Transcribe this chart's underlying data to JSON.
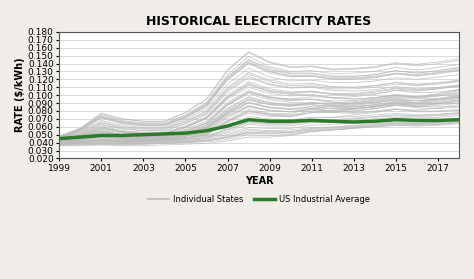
{
  "title": "HISTORICAL ELECTRICITY RATES",
  "xlabel": "YEAR",
  "ylabel": "RATE ($/kWh)",
  "ylim": [
    0.02,
    0.18
  ],
  "xlim": [
    1999,
    2018
  ],
  "yticks": [
    0.02,
    0.03,
    0.04,
    0.05,
    0.06,
    0.07,
    0.08,
    0.09,
    0.1,
    0.11,
    0.12,
    0.13,
    0.14,
    0.15,
    0.16,
    0.17,
    0.18
  ],
  "xticks": [
    1999,
    2001,
    2003,
    2005,
    2007,
    2009,
    2011,
    2013,
    2015,
    2017
  ],
  "years": [
    1999,
    2000,
    2001,
    2002,
    2003,
    2004,
    2005,
    2006,
    2007,
    2008,
    2009,
    2010,
    2011,
    2012,
    2013,
    2014,
    2015,
    2016,
    2017,
    2018
  ],
  "us_avg": [
    0.045,
    0.047,
    0.049,
    0.049,
    0.05,
    0.051,
    0.052,
    0.055,
    0.061,
    0.069,
    0.067,
    0.067,
    0.068,
    0.067,
    0.066,
    0.067,
    0.069,
    0.068,
    0.068,
    0.069
  ],
  "state_lines": [
    [
      0.038,
      0.039,
      0.04,
      0.04,
      0.04,
      0.041,
      0.042,
      0.043,
      0.047,
      0.053,
      0.052,
      0.053,
      0.056,
      0.057,
      0.059,
      0.061,
      0.063,
      0.062,
      0.063,
      0.065
    ],
    [
      0.039,
      0.04,
      0.041,
      0.04,
      0.041,
      0.042,
      0.043,
      0.045,
      0.05,
      0.057,
      0.055,
      0.056,
      0.059,
      0.06,
      0.062,
      0.064,
      0.066,
      0.065,
      0.066,
      0.068
    ],
    [
      0.04,
      0.041,
      0.042,
      0.041,
      0.042,
      0.043,
      0.044,
      0.046,
      0.052,
      0.059,
      0.058,
      0.058,
      0.062,
      0.063,
      0.065,
      0.067,
      0.069,
      0.068,
      0.069,
      0.071
    ],
    [
      0.037,
      0.038,
      0.039,
      0.038,
      0.039,
      0.04,
      0.041,
      0.043,
      0.048,
      0.055,
      0.054,
      0.054,
      0.058,
      0.059,
      0.061,
      0.063,
      0.065,
      0.064,
      0.065,
      0.067
    ],
    [
      0.036,
      0.037,
      0.038,
      0.037,
      0.038,
      0.039,
      0.04,
      0.042,
      0.046,
      0.052,
      0.051,
      0.051,
      0.055,
      0.056,
      0.058,
      0.06,
      0.062,
      0.061,
      0.062,
      0.064
    ],
    [
      0.038,
      0.039,
      0.039,
      0.039,
      0.039,
      0.04,
      0.041,
      0.043,
      0.047,
      0.053,
      0.052,
      0.053,
      0.057,
      0.058,
      0.06,
      0.062,
      0.064,
      0.063,
      0.064,
      0.066
    ],
    [
      0.04,
      0.042,
      0.045,
      0.043,
      0.043,
      0.044,
      0.046,
      0.049,
      0.057,
      0.066,
      0.064,
      0.064,
      0.068,
      0.069,
      0.071,
      0.073,
      0.075,
      0.074,
      0.075,
      0.077
    ],
    [
      0.037,
      0.038,
      0.038,
      0.038,
      0.038,
      0.039,
      0.04,
      0.041,
      0.044,
      0.05,
      0.049,
      0.05,
      0.054,
      0.056,
      0.058,
      0.06,
      0.062,
      0.062,
      0.063,
      0.066
    ],
    [
      0.036,
      0.036,
      0.037,
      0.036,
      0.036,
      0.037,
      0.038,
      0.039,
      0.042,
      0.047,
      0.047,
      0.049,
      0.054,
      0.056,
      0.059,
      0.062,
      0.065,
      0.064,
      0.066,
      0.069
    ],
    [
      0.04,
      0.044,
      0.051,
      0.046,
      0.044,
      0.044,
      0.05,
      0.057,
      0.075,
      0.087,
      0.081,
      0.079,
      0.08,
      0.078,
      0.077,
      0.079,
      0.082,
      0.079,
      0.079,
      0.081
    ],
    [
      0.038,
      0.04,
      0.042,
      0.041,
      0.041,
      0.042,
      0.044,
      0.047,
      0.054,
      0.063,
      0.061,
      0.061,
      0.065,
      0.066,
      0.068,
      0.07,
      0.072,
      0.071,
      0.072,
      0.074
    ],
    [
      0.039,
      0.041,
      0.043,
      0.042,
      0.042,
      0.043,
      0.045,
      0.048,
      0.056,
      0.065,
      0.063,
      0.063,
      0.067,
      0.068,
      0.07,
      0.072,
      0.074,
      0.073,
      0.074,
      0.076
    ],
    [
      0.04,
      0.043,
      0.047,
      0.044,
      0.044,
      0.045,
      0.048,
      0.052,
      0.062,
      0.073,
      0.07,
      0.069,
      0.072,
      0.072,
      0.073,
      0.075,
      0.077,
      0.075,
      0.076,
      0.078
    ],
    [
      0.04,
      0.044,
      0.05,
      0.046,
      0.044,
      0.044,
      0.05,
      0.058,
      0.078,
      0.091,
      0.084,
      0.082,
      0.083,
      0.08,
      0.078,
      0.08,
      0.083,
      0.08,
      0.08,
      0.082
    ],
    [
      0.042,
      0.047,
      0.055,
      0.05,
      0.048,
      0.048,
      0.055,
      0.064,
      0.087,
      0.102,
      0.094,
      0.091,
      0.091,
      0.087,
      0.085,
      0.087,
      0.09,
      0.086,
      0.085,
      0.086
    ],
    [
      0.041,
      0.046,
      0.053,
      0.048,
      0.046,
      0.046,
      0.053,
      0.062,
      0.083,
      0.097,
      0.09,
      0.088,
      0.088,
      0.085,
      0.083,
      0.085,
      0.088,
      0.084,
      0.083,
      0.085
    ],
    [
      0.043,
      0.048,
      0.057,
      0.052,
      0.05,
      0.05,
      0.057,
      0.067,
      0.091,
      0.106,
      0.098,
      0.095,
      0.095,
      0.091,
      0.089,
      0.091,
      0.094,
      0.09,
      0.089,
      0.09
    ],
    [
      0.042,
      0.047,
      0.055,
      0.05,
      0.048,
      0.048,
      0.055,
      0.065,
      0.089,
      0.104,
      0.097,
      0.094,
      0.095,
      0.091,
      0.09,
      0.092,
      0.096,
      0.093,
      0.094,
      0.096
    ],
    [
      0.044,
      0.049,
      0.059,
      0.054,
      0.052,
      0.052,
      0.06,
      0.071,
      0.097,
      0.113,
      0.104,
      0.101,
      0.101,
      0.097,
      0.095,
      0.097,
      0.1,
      0.096,
      0.095,
      0.097
    ],
    [
      0.043,
      0.048,
      0.058,
      0.053,
      0.051,
      0.051,
      0.059,
      0.07,
      0.095,
      0.11,
      0.102,
      0.099,
      0.1,
      0.096,
      0.095,
      0.097,
      0.101,
      0.098,
      0.099,
      0.101
    ],
    [
      0.044,
      0.05,
      0.061,
      0.055,
      0.053,
      0.053,
      0.061,
      0.073,
      0.1,
      0.117,
      0.108,
      0.104,
      0.105,
      0.101,
      0.1,
      0.102,
      0.106,
      0.103,
      0.104,
      0.107
    ],
    [
      0.045,
      0.051,
      0.063,
      0.058,
      0.055,
      0.055,
      0.064,
      0.076,
      0.104,
      0.122,
      0.113,
      0.109,
      0.11,
      0.106,
      0.105,
      0.107,
      0.111,
      0.108,
      0.11,
      0.113
    ],
    [
      0.046,
      0.053,
      0.066,
      0.06,
      0.058,
      0.058,
      0.067,
      0.08,
      0.11,
      0.129,
      0.119,
      0.114,
      0.115,
      0.111,
      0.11,
      0.112,
      0.116,
      0.113,
      0.115,
      0.118
    ],
    [
      0.043,
      0.049,
      0.06,
      0.054,
      0.052,
      0.052,
      0.06,
      0.072,
      0.098,
      0.115,
      0.106,
      0.103,
      0.105,
      0.102,
      0.102,
      0.105,
      0.109,
      0.107,
      0.109,
      0.112
    ],
    [
      0.042,
      0.048,
      0.058,
      0.053,
      0.051,
      0.051,
      0.059,
      0.071,
      0.097,
      0.113,
      0.105,
      0.102,
      0.104,
      0.101,
      0.101,
      0.104,
      0.108,
      0.106,
      0.108,
      0.111
    ],
    [
      0.044,
      0.051,
      0.063,
      0.057,
      0.055,
      0.055,
      0.064,
      0.077,
      0.106,
      0.124,
      0.114,
      0.11,
      0.111,
      0.108,
      0.108,
      0.11,
      0.114,
      0.112,
      0.114,
      0.117
    ],
    [
      0.045,
      0.052,
      0.065,
      0.059,
      0.057,
      0.057,
      0.066,
      0.079,
      0.108,
      0.127,
      0.117,
      0.112,
      0.113,
      0.11,
      0.11,
      0.112,
      0.116,
      0.114,
      0.116,
      0.119
    ],
    [
      0.046,
      0.054,
      0.068,
      0.062,
      0.059,
      0.059,
      0.069,
      0.083,
      0.114,
      0.134,
      0.123,
      0.118,
      0.119,
      0.116,
      0.116,
      0.118,
      0.122,
      0.12,
      0.123,
      0.126
    ],
    [
      0.047,
      0.056,
      0.072,
      0.065,
      0.062,
      0.062,
      0.072,
      0.087,
      0.12,
      0.141,
      0.13,
      0.124,
      0.124,
      0.121,
      0.121,
      0.123,
      0.127,
      0.125,
      0.128,
      0.132
    ],
    [
      0.048,
      0.057,
      0.074,
      0.067,
      0.064,
      0.064,
      0.074,
      0.089,
      0.123,
      0.145,
      0.134,
      0.128,
      0.128,
      0.124,
      0.124,
      0.126,
      0.131,
      0.128,
      0.131,
      0.135
    ],
    [
      0.046,
      0.055,
      0.071,
      0.064,
      0.061,
      0.061,
      0.071,
      0.086,
      0.119,
      0.14,
      0.128,
      0.123,
      0.124,
      0.12,
      0.12,
      0.122,
      0.127,
      0.124,
      0.127,
      0.131
    ],
    [
      0.046,
      0.055,
      0.072,
      0.065,
      0.062,
      0.062,
      0.072,
      0.087,
      0.121,
      0.142,
      0.13,
      0.125,
      0.125,
      0.122,
      0.122,
      0.124,
      0.128,
      0.126,
      0.129,
      0.133
    ],
    [
      0.047,
      0.056,
      0.073,
      0.066,
      0.063,
      0.063,
      0.073,
      0.089,
      0.123,
      0.144,
      0.132,
      0.127,
      0.127,
      0.124,
      0.124,
      0.126,
      0.131,
      0.128,
      0.131,
      0.135
    ],
    [
      0.047,
      0.057,
      0.075,
      0.068,
      0.065,
      0.065,
      0.075,
      0.091,
      0.126,
      0.149,
      0.136,
      0.13,
      0.131,
      0.127,
      0.128,
      0.13,
      0.135,
      0.132,
      0.135,
      0.139
    ],
    [
      0.048,
      0.058,
      0.077,
      0.07,
      0.067,
      0.067,
      0.078,
      0.095,
      0.131,
      0.154,
      0.141,
      0.135,
      0.136,
      0.132,
      0.133,
      0.135,
      0.14,
      0.137,
      0.14,
      0.144
    ],
    [
      0.048,
      0.058,
      0.077,
      0.07,
      0.067,
      0.067,
      0.078,
      0.095,
      0.132,
      0.155,
      0.142,
      0.136,
      0.137,
      0.133,
      0.134,
      0.136,
      0.141,
      0.139,
      0.142,
      0.146
    ],
    [
      0.038,
      0.041,
      0.043,
      0.042,
      0.042,
      0.043,
      0.046,
      0.05,
      0.067,
      0.08,
      0.075,
      0.073,
      0.078,
      0.079,
      0.082,
      0.085,
      0.089,
      0.088,
      0.09,
      0.094
    ],
    [
      0.039,
      0.041,
      0.044,
      0.043,
      0.042,
      0.043,
      0.046,
      0.05,
      0.065,
      0.077,
      0.073,
      0.073,
      0.078,
      0.08,
      0.083,
      0.086,
      0.09,
      0.089,
      0.092,
      0.096
    ],
    [
      0.04,
      0.043,
      0.046,
      0.044,
      0.043,
      0.044,
      0.048,
      0.053,
      0.069,
      0.082,
      0.077,
      0.077,
      0.083,
      0.086,
      0.09,
      0.094,
      0.098,
      0.097,
      0.101,
      0.106
    ],
    [
      0.042,
      0.046,
      0.051,
      0.047,
      0.046,
      0.047,
      0.052,
      0.059,
      0.079,
      0.094,
      0.088,
      0.086,
      0.088,
      0.086,
      0.086,
      0.088,
      0.092,
      0.09,
      0.091,
      0.094
    ],
    [
      0.04,
      0.043,
      0.048,
      0.045,
      0.044,
      0.045,
      0.049,
      0.055,
      0.073,
      0.086,
      0.081,
      0.079,
      0.082,
      0.08,
      0.08,
      0.083,
      0.087,
      0.085,
      0.087,
      0.09
    ],
    [
      0.041,
      0.044,
      0.05,
      0.046,
      0.045,
      0.046,
      0.051,
      0.058,
      0.077,
      0.091,
      0.085,
      0.083,
      0.085,
      0.083,
      0.083,
      0.085,
      0.089,
      0.087,
      0.089,
      0.092
    ],
    [
      0.042,
      0.046,
      0.053,
      0.049,
      0.047,
      0.048,
      0.053,
      0.061,
      0.083,
      0.098,
      0.091,
      0.088,
      0.09,
      0.088,
      0.088,
      0.091,
      0.095,
      0.093,
      0.095,
      0.099
    ],
    [
      0.041,
      0.045,
      0.052,
      0.048,
      0.046,
      0.047,
      0.052,
      0.06,
      0.081,
      0.095,
      0.089,
      0.087,
      0.09,
      0.089,
      0.09,
      0.093,
      0.097,
      0.096,
      0.099,
      0.103
    ],
    [
      0.04,
      0.044,
      0.05,
      0.046,
      0.044,
      0.045,
      0.05,
      0.057,
      0.076,
      0.09,
      0.084,
      0.082,
      0.086,
      0.086,
      0.087,
      0.09,
      0.094,
      0.093,
      0.096,
      0.1
    ],
    [
      0.042,
      0.047,
      0.055,
      0.05,
      0.048,
      0.049,
      0.055,
      0.064,
      0.088,
      0.104,
      0.096,
      0.093,
      0.095,
      0.093,
      0.093,
      0.096,
      0.1,
      0.098,
      0.1,
      0.104
    ],
    [
      0.041,
      0.046,
      0.054,
      0.049,
      0.048,
      0.049,
      0.055,
      0.064,
      0.088,
      0.104,
      0.097,
      0.095,
      0.098,
      0.097,
      0.098,
      0.101,
      0.106,
      0.105,
      0.108,
      0.112
    ],
    [
      0.041,
      0.044,
      0.05,
      0.046,
      0.045,
      0.046,
      0.051,
      0.059,
      0.079,
      0.094,
      0.088,
      0.086,
      0.09,
      0.09,
      0.092,
      0.095,
      0.099,
      0.098,
      0.102,
      0.107
    ],
    [
      0.04,
      0.043,
      0.047,
      0.044,
      0.043,
      0.044,
      0.048,
      0.054,
      0.072,
      0.085,
      0.08,
      0.079,
      0.083,
      0.083,
      0.085,
      0.088,
      0.092,
      0.091,
      0.094,
      0.098
    ],
    [
      0.039,
      0.041,
      0.044,
      0.042,
      0.041,
      0.042,
      0.046,
      0.051,
      0.067,
      0.079,
      0.075,
      0.074,
      0.078,
      0.078,
      0.08,
      0.083,
      0.087,
      0.086,
      0.089,
      0.093
    ],
    [
      0.039,
      0.041,
      0.043,
      0.042,
      0.042,
      0.043,
      0.046,
      0.051,
      0.067,
      0.08,
      0.076,
      0.075,
      0.08,
      0.081,
      0.083,
      0.086,
      0.091,
      0.09,
      0.094,
      0.099
    ],
    [
      0.038,
      0.039,
      0.04,
      0.039,
      0.039,
      0.04,
      0.042,
      0.045,
      0.059,
      0.07,
      0.067,
      0.067,
      0.071,
      0.072,
      0.075,
      0.078,
      0.082,
      0.081,
      0.084,
      0.088
    ]
  ],
  "gray_color": "#bbbbbb",
  "green_color": "#2d7a2d",
  "background_color": "#f0ede8",
  "plot_bg_color": "#ffffff",
  "legend_gray": "Individual States",
  "legend_green": "US Industrial Average",
  "title_fontsize": 9,
  "label_fontsize": 7,
  "tick_fontsize": 6.5
}
